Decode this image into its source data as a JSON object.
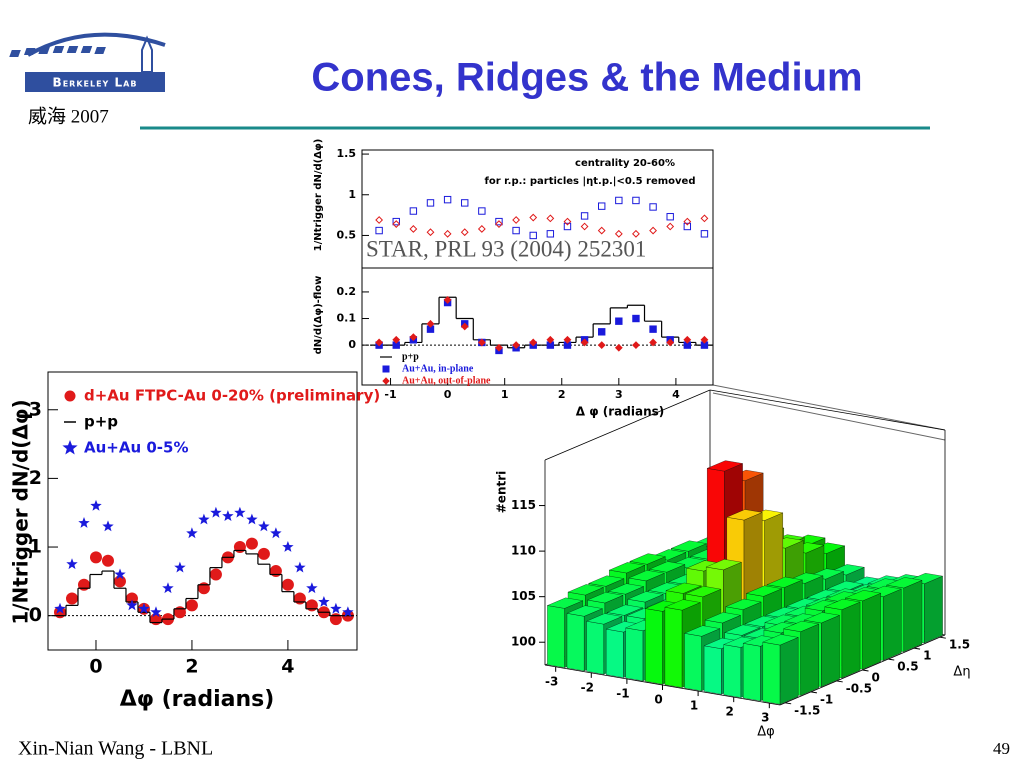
{
  "header": {
    "title": "Cones, Ridges & the Medium",
    "logo": "Berkeley Lab",
    "subtitle": "威海 2007"
  },
  "footer": {
    "author": "Xin-Nian Wang - LBNL",
    "page": "49"
  },
  "chart_data": [
    {
      "type": "scatter",
      "ylabel": "1/Ntrigger dN/d(Δφ)",
      "annotations": [
        "centrality 20-60%",
        "for r.p.: particles |ηt.p.|<0.5 removed",
        "STAR, PRL 93 (2004) 252301"
      ],
      "x": [
        -1.2,
        -0.9,
        -0.6,
        -0.3,
        0,
        0.3,
        0.6,
        0.9,
        1.2,
        1.5,
        1.8,
        2.1,
        2.4,
        2.7,
        3.0,
        3.3,
        3.6,
        3.9,
        4.2,
        4.5
      ],
      "series": [
        {
          "name": "Au+Au, in-plane",
          "color": "#1a1adc",
          "marker": "square-open",
          "values": [
            0.56,
            0.67,
            0.8,
            0.9,
            0.94,
            0.9,
            0.8,
            0.67,
            0.56,
            0.5,
            0.52,
            0.61,
            0.74,
            0.86,
            0.93,
            0.93,
            0.85,
            0.73,
            0.61,
            0.52
          ]
        },
        {
          "name": "Au+Au, out-of-plane",
          "color": "#e01a1a",
          "marker": "diamond-open",
          "values": [
            0.69,
            0.64,
            0.58,
            0.54,
            0.52,
            0.54,
            0.58,
            0.64,
            0.69,
            0.72,
            0.71,
            0.67,
            0.61,
            0.56,
            0.52,
            0.52,
            0.56,
            0.61,
            0.67,
            0.71
          ]
        }
      ],
      "xlim": [
        -1.5,
        4.65
      ],
      "ylim": [
        0.1,
        1.55
      ],
      "yticks": [
        0.5,
        1,
        1.5
      ]
    },
    {
      "type": "scatter",
      "ylabel": "dN/d(Δφ)-flow",
      "xlabel": "Δ φ (radians)",
      "x": [
        -1.2,
        -0.9,
        -0.6,
        -0.3,
        0,
        0.3,
        0.6,
        0.9,
        1.2,
        1.5,
        1.8,
        2.1,
        2.4,
        2.7,
        3.0,
        3.3,
        3.6,
        3.9,
        4.2,
        4.5
      ],
      "series": [
        {
          "name": "p+p",
          "color": "#000000",
          "marker": "step",
          "values": [
            0,
            0,
            0.01,
            0.08,
            0.18,
            0.1,
            0.02,
            0,
            -0.01,
            0,
            0,
            0.01,
            0.03,
            0.08,
            0.14,
            0.15,
            0.09,
            0.03,
            0.01,
            0
          ]
        },
        {
          "name": "Au+Au, in-plane",
          "color": "#1a1adc",
          "marker": "square",
          "values": [
            0,
            0,
            0.02,
            0.06,
            0.16,
            0.08,
            0.01,
            -0.02,
            -0.01,
            0,
            0,
            0,
            0.02,
            0.05,
            0.09,
            0.1,
            0.06,
            0.02,
            0,
            0
          ]
        },
        {
          "name": "Au+Au, out-of-plane",
          "color": "#e01a1a",
          "marker": "diamond",
          "values": [
            0.01,
            0.02,
            0.03,
            0.08,
            0.17,
            0.07,
            0.01,
            -0.01,
            0,
            0.01,
            0.02,
            0.02,
            0.01,
            0,
            -0.01,
            0,
            0.01,
            0.01,
            0.02,
            0.02
          ]
        }
      ],
      "xlim": [
        -1.5,
        4.65
      ],
      "ylim": [
        -0.15,
        0.29
      ],
      "xticks": [
        -1,
        0,
        1,
        2,
        3,
        4
      ],
      "yticks": [
        0,
        0.1,
        0.2
      ],
      "zero_line": true,
      "legend": "bottom-left"
    },
    {
      "type": "scatter",
      "ylabel": "1/Ntrigger dN/d(Δφ)",
      "xlabel": "Δφ (radians)",
      "x": [
        -0.75,
        -0.5,
        -0.25,
        0,
        0.25,
        0.5,
        0.75,
        1,
        1.25,
        1.5,
        1.75,
        2,
        2.25,
        2.5,
        2.75,
        3,
        3.25,
        3.5,
        3.75,
        4,
        4.25,
        4.5,
        4.75,
        5,
        5.25
      ],
      "series": [
        {
          "name": "d+Au FTPC-Au 0-20% (preliminary)",
          "color": "#e01a1a",
          "marker": "circle",
          "values": [
            0.05,
            0.25,
            0.45,
            0.85,
            0.8,
            0.5,
            0.25,
            0.1,
            -0.05,
            -0.05,
            0.05,
            0.15,
            0.4,
            0.6,
            0.85,
            1.0,
            1.05,
            0.9,
            0.65,
            0.45,
            0.25,
            0.15,
            0.05,
            -0.05,
            0
          ]
        },
        {
          "name": "p+p",
          "color": "#000000",
          "marker": "step",
          "values": [
            0,
            0.15,
            0.4,
            0.6,
            0.65,
            0.4,
            0.2,
            0.05,
            -0.1,
            -0.05,
            0.1,
            0.25,
            0.45,
            0.7,
            0.85,
            0.95,
            0.9,
            0.75,
            0.6,
            0.35,
            0.2,
            0.1,
            0.05,
            0,
            0
          ]
        },
        {
          "name": "Au+Au 0-5%",
          "color": "#1a1adc",
          "marker": "star",
          "values": [
            0.1,
            0.75,
            1.35,
            1.6,
            1.3,
            0.6,
            0.15,
            0.1,
            0.05,
            0.4,
            0.7,
            1.2,
            1.4,
            1.5,
            1.45,
            1.5,
            1.4,
            1.3,
            1.2,
            1.0,
            0.7,
            0.4,
            0.2,
            0.1,
            0.05
          ]
        }
      ],
      "xlim": [
        -1,
        5.44
      ],
      "ylim": [
        -0.5,
        3.55
      ],
      "xticks": [
        0,
        2,
        4
      ],
      "yticks": [
        0,
        1,
        2,
        3
      ],
      "zero_line": true,
      "legend": "top-left"
    },
    {
      "type": "bar3d",
      "zlabel": "#entri",
      "xlabel": "Δφ",
      "ylabel": "Δη",
      "z": [
        [
          104,
          103.5,
          103,
          102.5,
          103,
          105.5,
          106,
          103.5,
          102.5,
          103,
          103.5,
          104
        ],
        [
          104.5,
          104,
          103,
          103,
          104,
          106.5,
          106.5,
          104,
          103,
          103,
          104,
          104.5
        ],
        [
          104.5,
          104,
          103.5,
          103,
          104.5,
          108,
          108.5,
          104.5,
          103,
          103.5,
          104,
          104.5
        ],
        [
          105,
          104.5,
          103.5,
          103,
          105.5,
          118,
          113,
          105,
          103,
          103.5,
          104.5,
          105
        ],
        [
          105,
          104.5,
          103.5,
          103,
          105.5,
          116,
          112,
          105,
          103,
          103.5,
          104.5,
          105
        ],
        [
          104.5,
          104,
          103.5,
          103,
          104.5,
          109,
          108,
          104.5,
          103,
          103.5,
          104,
          104.5
        ],
        [
          104.5,
          104,
          103,
          103,
          104,
          107,
          106.5,
          104,
          103,
          103,
          104,
          104.5
        ],
        [
          104,
          103.5,
          103,
          102.5,
          103.5,
          106,
          105.5,
          103.5,
          102.5,
          103,
          103.5,
          104
        ]
      ],
      "xlim": [
        -3.3,
        3.3
      ],
      "ylim": [
        -1.6,
        1.6
      ],
      "zlim": [
        97.5,
        120
      ],
      "xticks": [
        -3,
        -2,
        -1,
        0,
        1,
        2,
        3
      ],
      "yticks": [
        -1.5,
        -1,
        -0.5,
        0,
        0.5,
        1,
        1.5
      ],
      "zticks": [
        100,
        105,
        110,
        115
      ]
    }
  ]
}
